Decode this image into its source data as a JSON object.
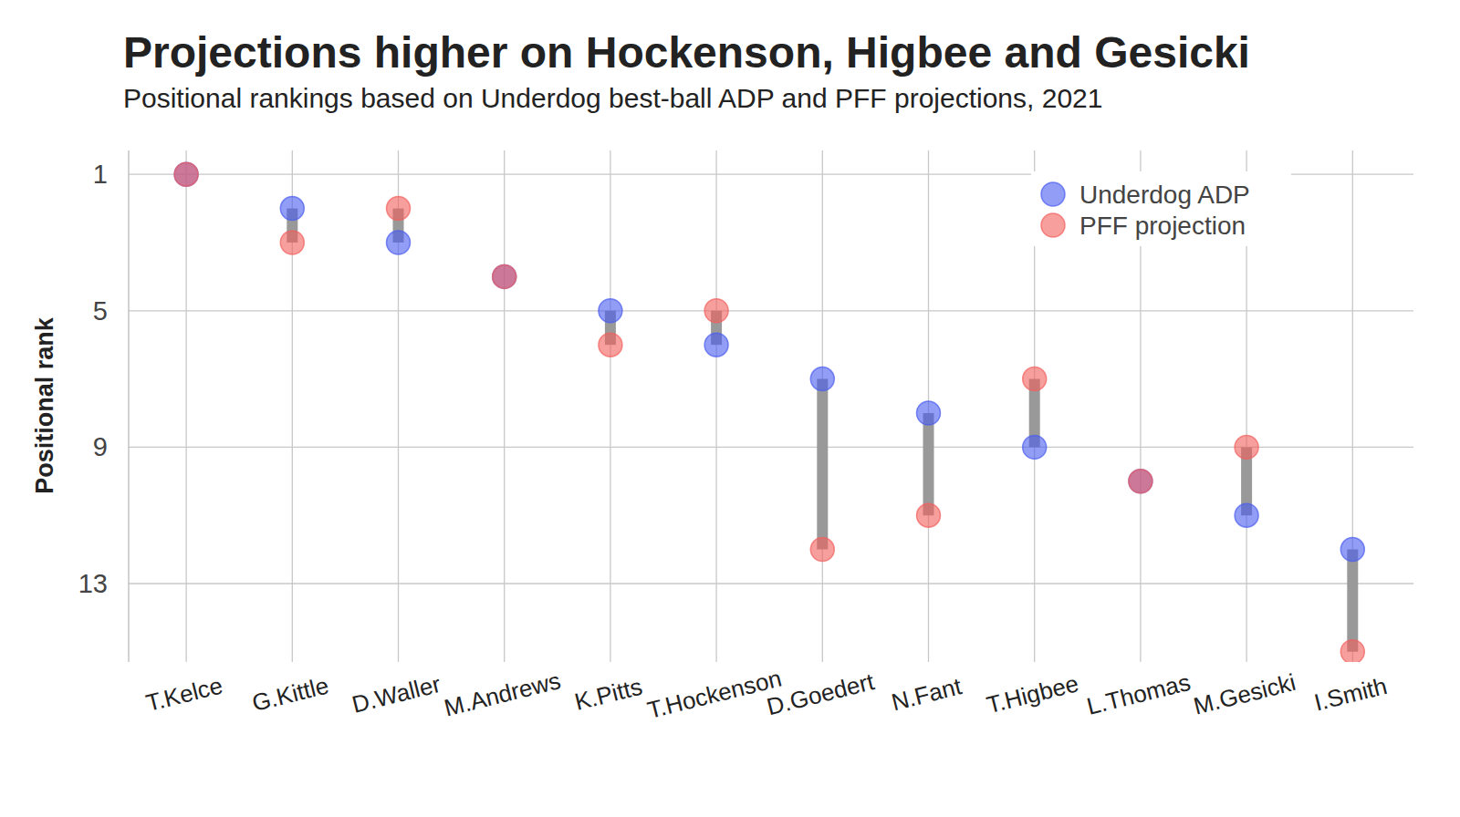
{
  "chart_data": {
    "type": "dumbbell",
    "title": "Projections higher on Hockenson, Higbee and Gesicki",
    "subtitle": "Positional rankings based on Underdog best-ball ADP and PFF projections, 2021",
    "y_label": "Positional rank",
    "categories": [
      "T.Kelce",
      "G.Kittle",
      "D.Waller",
      "M.Andrews",
      "K.Pitts",
      "T.Hockenson",
      "D.Goedert",
      "N.Fant",
      "T.Higbee",
      "L.Thomas",
      "M.Gesicki",
      "I.Smith"
    ],
    "series": [
      {
        "name": "Underdog ADP",
        "color": "#4a5cf0",
        "values": [
          1,
          2,
          3,
          4,
          5,
          6,
          7,
          8,
          9,
          10,
          11,
          12
        ]
      },
      {
        "name": "PFF projection",
        "color": "#f25f5c",
        "values": [
          1,
          3,
          2,
          4,
          6,
          5,
          12,
          11,
          7,
          10,
          9,
          15
        ]
      }
    ],
    "ylim": [
      15.3,
      0.3
    ],
    "yticks": [
      1,
      5,
      9,
      13
    ],
    "grid": true,
    "legend": "top-right",
    "marker": "circle"
  }
}
